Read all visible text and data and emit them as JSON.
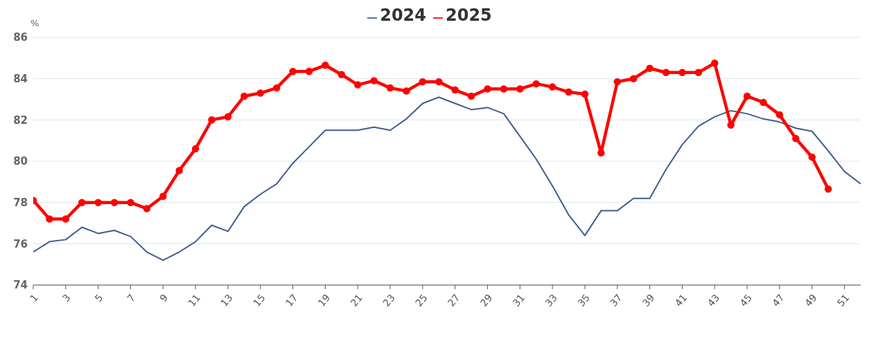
{
  "chart_data": {
    "type": "line",
    "ylabel": "%",
    "legend": "top",
    "grid": "y",
    "x": [
      1,
      2,
      3,
      4,
      5,
      6,
      7,
      8,
      9,
      10,
      11,
      12,
      13,
      14,
      15,
      16,
      17,
      18,
      19,
      20,
      21,
      22,
      23,
      24,
      25,
      26,
      27,
      28,
      29,
      30,
      31,
      32,
      33,
      34,
      35,
      36,
      37,
      38,
      39,
      40,
      41,
      42,
      43,
      44,
      45,
      46,
      47,
      48,
      49,
      50,
      51,
      52
    ],
    "xlim": [
      1,
      52
    ],
    "xticks": [
      1,
      3,
      5,
      7,
      9,
      11,
      13,
      15,
      17,
      19,
      21,
      23,
      25,
      27,
      29,
      31,
      33,
      35,
      37,
      39,
      41,
      43,
      45,
      47,
      49,
      51
    ],
    "ylim": [
      74,
      86
    ],
    "yticks": [
      74,
      76,
      78,
      80,
      82,
      84,
      86
    ],
    "series": [
      {
        "name": "2024",
        "color": "#3d5d8f",
        "marker": "none",
        "values": [
          75.6,
          76.1,
          76.2,
          76.8,
          76.5,
          76.65,
          76.35,
          75.6,
          75.2,
          75.6,
          76.1,
          76.9,
          76.6,
          77.8,
          78.4,
          78.9,
          79.9,
          80.7,
          81.5,
          81.5,
          81.5,
          81.65,
          81.5,
          82.05,
          82.8,
          83.1,
          82.8,
          82.5,
          82.6,
          82.3,
          81.2,
          80.1,
          78.8,
          77.4,
          76.4,
          77.6,
          77.6,
          78.2,
          78.2,
          79.6,
          80.8,
          81.7,
          82.15,
          82.45,
          82.3,
          82.05,
          81.9,
          81.6,
          81.45,
          80.5,
          79.5,
          78.9
        ]
      },
      {
        "name": "2025",
        "color": "#ff0000",
        "marker": "circle",
        "values": [
          78.1,
          77.2,
          77.2,
          78.0,
          78.0,
          78.0,
          78.0,
          77.7,
          78.3,
          79.55,
          80.6,
          82.0,
          82.15,
          83.15,
          83.3,
          83.55,
          84.35,
          84.35,
          84.65,
          84.2,
          83.7,
          83.9,
          83.55,
          83.4,
          83.85,
          83.85,
          83.45,
          83.15,
          83.5,
          83.5,
          83.5,
          83.75,
          83.6,
          83.35,
          83.25,
          80.4,
          83.85,
          84.0,
          84.5,
          84.3,
          84.3,
          84.3,
          84.75,
          81.75,
          83.15,
          82.85,
          82.25,
          81.1,
          80.2,
          78.65,
          null,
          null
        ]
      }
    ]
  }
}
